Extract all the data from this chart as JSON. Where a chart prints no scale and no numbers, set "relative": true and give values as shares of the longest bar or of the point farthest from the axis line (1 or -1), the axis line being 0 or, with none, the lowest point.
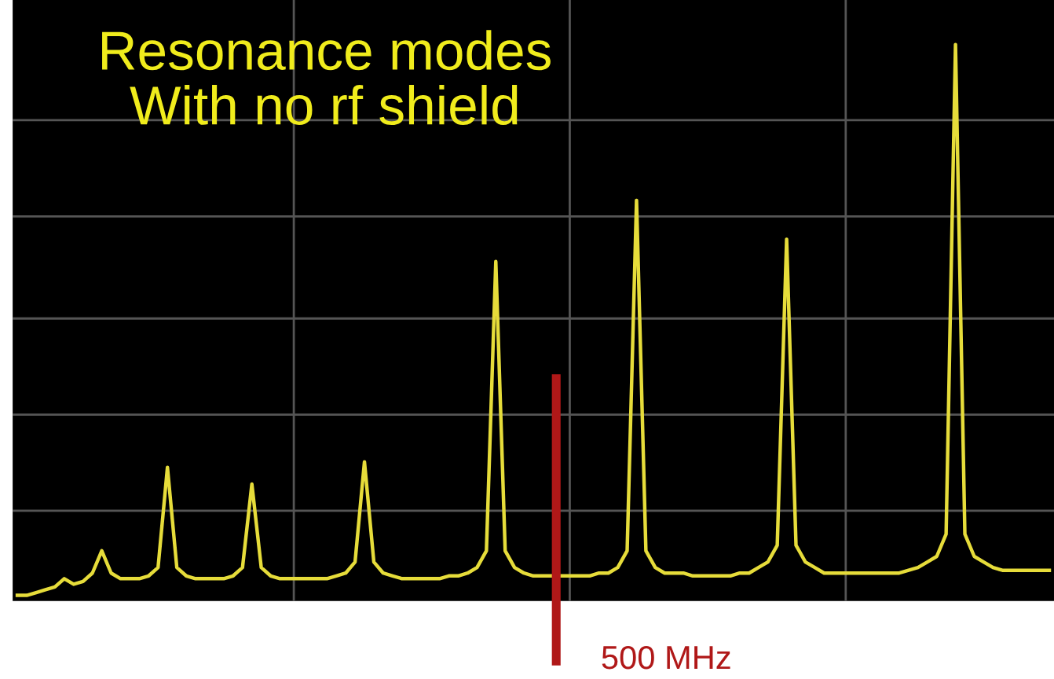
{
  "chart_data": {
    "type": "line",
    "title": "Resonance modes\nWith no rf shield",
    "relative": true,
    "grid": true,
    "legend": false,
    "categories": [
      null,
      null,
      null,
      null,
      null,
      null,
      null,
      null,
      null,
      null,
      null,
      null,
      null,
      null,
      null,
      null,
      null,
      null,
      null,
      null,
      null,
      null,
      null,
      null,
      null,
      null,
      null,
      null,
      null,
      null,
      null,
      null,
      null,
      null,
      null,
      null,
      null,
      null,
      null,
      null,
      null,
      null,
      null,
      null,
      null,
      null,
      null,
      null,
      null,
      null,
      null,
      null,
      null,
      null,
      null,
      null,
      null,
      null,
      null,
      null,
      null,
      null,
      null,
      null,
      null,
      null,
      null,
      null,
      null,
      null,
      null,
      null,
      null,
      null,
      null,
      null,
      null,
      null,
      null,
      null,
      null,
      null,
      null,
      null,
      null,
      null,
      null,
      null,
      null,
      null,
      null,
      null,
      null,
      null,
      null,
      null,
      null,
      null,
      null,
      null,
      null,
      null,
      null,
      null,
      null,
      null,
      null,
      null,
      null,
      null,
      null
    ],
    "series": [
      {
        "color": "#e6dc3a",
        "values": [
          0.01,
          0.01,
          0.015,
          0.02,
          0.025,
          0.04,
          0.03,
          0.035,
          0.05,
          0.09,
          0.05,
          0.04,
          0.04,
          0.04,
          0.045,
          0.06,
          0.24,
          0.06,
          0.045,
          0.04,
          0.04,
          0.04,
          0.04,
          0.045,
          0.06,
          0.21,
          0.06,
          0.045,
          0.04,
          0.04,
          0.04,
          0.04,
          0.04,
          0.04,
          0.045,
          0.05,
          0.07,
          0.25,
          0.07,
          0.05,
          0.045,
          0.04,
          0.04,
          0.04,
          0.04,
          0.04,
          0.045,
          0.045,
          0.05,
          0.06,
          0.09,
          0.61,
          0.09,
          0.06,
          0.05,
          0.045,
          0.045,
          0.045,
          0.045,
          0.045,
          0.045,
          0.045,
          0.05,
          0.05,
          0.06,
          0.09,
          0.72,
          0.09,
          0.06,
          0.05,
          0.05,
          0.05,
          0.045,
          0.045,
          0.045,
          0.045,
          0.045,
          0.05,
          0.05,
          0.06,
          0.07,
          0.1,
          0.65,
          0.1,
          0.07,
          0.06,
          0.05,
          0.05,
          0.05,
          0.05,
          0.05,
          0.05,
          0.05,
          0.05,
          0.05,
          0.055,
          0.06,
          0.07,
          0.08,
          0.12,
          1.0,
          0.12,
          0.08,
          0.07,
          0.06,
          0.055,
          0.055,
          0.055,
          0.055,
          0.055,
          0.055
        ]
      }
    ],
    "annotations": [
      "500 MHz"
    ]
  }
}
